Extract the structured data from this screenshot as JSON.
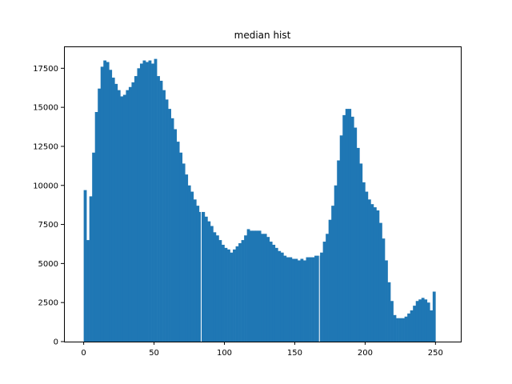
{
  "chart_data": {
    "type": "bar",
    "title": "median hist",
    "xlabel": "",
    "ylabel": "",
    "xlim": [
      -14,
      268
    ],
    "ylim": [
      0,
      18900
    ],
    "x_ticks": [
      0,
      50,
      100,
      150,
      200,
      250
    ],
    "x_tick_labels": [
      "0",
      "50",
      "100",
      "150",
      "200",
      "250"
    ],
    "y_ticks": [
      0,
      2500,
      5000,
      7500,
      10000,
      12500,
      15000,
      17500
    ],
    "y_tick_labels": [
      "0",
      "2500",
      "5000",
      "7500",
      "10000",
      "12500",
      "15000",
      "17500"
    ],
    "bar_color": "#1f77b4",
    "grid": false,
    "bins": [
      {
        "x": 0,
        "value": 9700
      },
      {
        "x": 2,
        "value": 6500
      },
      {
        "x": 4,
        "value": 9300
      },
      {
        "x": 6,
        "value": 12100
      },
      {
        "x": 8,
        "value": 14700
      },
      {
        "x": 10,
        "value": 16200
      },
      {
        "x": 12,
        "value": 17600
      },
      {
        "x": 14,
        "value": 18000
      },
      {
        "x": 16,
        "value": 17900
      },
      {
        "x": 18,
        "value": 17400
      },
      {
        "x": 20,
        "value": 16900
      },
      {
        "x": 22,
        "value": 16500
      },
      {
        "x": 24,
        "value": 16100
      },
      {
        "x": 26,
        "value": 15700
      },
      {
        "x": 28,
        "value": 15800
      },
      {
        "x": 30,
        "value": 16100
      },
      {
        "x": 32,
        "value": 16300
      },
      {
        "x": 34,
        "value": 16600
      },
      {
        "x": 36,
        "value": 17000
      },
      {
        "x": 38,
        "value": 17500
      },
      {
        "x": 40,
        "value": 17800
      },
      {
        "x": 42,
        "value": 18000
      },
      {
        "x": 44,
        "value": 17900
      },
      {
        "x": 46,
        "value": 18000
      },
      {
        "x": 48,
        "value": 17800
      },
      {
        "x": 50,
        "value": 18100
      },
      {
        "x": 52,
        "value": 17000
      },
      {
        "x": 54,
        "value": 16700
      },
      {
        "x": 56,
        "value": 16100
      },
      {
        "x": 58,
        "value": 15500
      },
      {
        "x": 60,
        "value": 14900
      },
      {
        "x": 62,
        "value": 14300
      },
      {
        "x": 64,
        "value": 13600
      },
      {
        "x": 66,
        "value": 12800
      },
      {
        "x": 68,
        "value": 12100
      },
      {
        "x": 70,
        "value": 11400
      },
      {
        "x": 72,
        "value": 10700
      },
      {
        "x": 74,
        "value": 10000
      },
      {
        "x": 76,
        "value": 9600
      },
      {
        "x": 78,
        "value": 9100
      },
      {
        "x": 80,
        "value": 8700
      },
      {
        "x": 82,
        "value": 8300
      },
      {
        "x": 84,
        "value": 8300
      },
      {
        "x": 86,
        "value": 8000
      },
      {
        "x": 88,
        "value": 7700
      },
      {
        "x": 90,
        "value": 7400
      },
      {
        "x": 92,
        "value": 7000
      },
      {
        "x": 94,
        "value": 6800
      },
      {
        "x": 96,
        "value": 6500
      },
      {
        "x": 98,
        "value": 6200
      },
      {
        "x": 100,
        "value": 6000
      },
      {
        "x": 102,
        "value": 5900
      },
      {
        "x": 104,
        "value": 5700
      },
      {
        "x": 106,
        "value": 5900
      },
      {
        "x": 108,
        "value": 6100
      },
      {
        "x": 110,
        "value": 6300
      },
      {
        "x": 112,
        "value": 6500
      },
      {
        "x": 114,
        "value": 6800
      },
      {
        "x": 116,
        "value": 7200
      },
      {
        "x": 118,
        "value": 7100
      },
      {
        "x": 120,
        "value": 7100
      },
      {
        "x": 122,
        "value": 7100
      },
      {
        "x": 124,
        "value": 7100
      },
      {
        "x": 126,
        "value": 6900
      },
      {
        "x": 128,
        "value": 6900
      },
      {
        "x": 130,
        "value": 6700
      },
      {
        "x": 132,
        "value": 6400
      },
      {
        "x": 134,
        "value": 6200
      },
      {
        "x": 136,
        "value": 6000
      },
      {
        "x": 138,
        "value": 5800
      },
      {
        "x": 140,
        "value": 5700
      },
      {
        "x": 142,
        "value": 5500
      },
      {
        "x": 144,
        "value": 5400
      },
      {
        "x": 146,
        "value": 5400
      },
      {
        "x": 148,
        "value": 5300
      },
      {
        "x": 150,
        "value": 5300
      },
      {
        "x": 152,
        "value": 5200
      },
      {
        "x": 154,
        "value": 5300
      },
      {
        "x": 156,
        "value": 5200
      },
      {
        "x": 158,
        "value": 5400
      },
      {
        "x": 160,
        "value": 5400
      },
      {
        "x": 162,
        "value": 5400
      },
      {
        "x": 164,
        "value": 5500
      },
      {
        "x": 166,
        "value": 5500
      },
      {
        "x": 168,
        "value": 5700
      },
      {
        "x": 170,
        "value": 6400
      },
      {
        "x": 172,
        "value": 6900
      },
      {
        "x": 174,
        "value": 7800
      },
      {
        "x": 176,
        "value": 8700
      },
      {
        "x": 178,
        "value": 10000
      },
      {
        "x": 180,
        "value": 11600
      },
      {
        "x": 182,
        "value": 13200
      },
      {
        "x": 184,
        "value": 14500
      },
      {
        "x": 186,
        "value": 14900
      },
      {
        "x": 188,
        "value": 14900
      },
      {
        "x": 190,
        "value": 14400
      },
      {
        "x": 192,
        "value": 13700
      },
      {
        "x": 194,
        "value": 12400
      },
      {
        "x": 196,
        "value": 11400
      },
      {
        "x": 198,
        "value": 10200
      },
      {
        "x": 200,
        "value": 9600
      },
      {
        "x": 202,
        "value": 9100
      },
      {
        "x": 204,
        "value": 8800
      },
      {
        "x": 206,
        "value": 8600
      },
      {
        "x": 208,
        "value": 8400
      },
      {
        "x": 210,
        "value": 7600
      },
      {
        "x": 212,
        "value": 6600
      },
      {
        "x": 214,
        "value": 5200
      },
      {
        "x": 216,
        "value": 3800
      },
      {
        "x": 218,
        "value": 2600
      },
      {
        "x": 220,
        "value": 1700
      },
      {
        "x": 222,
        "value": 1500
      },
      {
        "x": 224,
        "value": 1500
      },
      {
        "x": 226,
        "value": 1500
      },
      {
        "x": 228,
        "value": 1600
      },
      {
        "x": 230,
        "value": 1800
      },
      {
        "x": 232,
        "value": 2000
      },
      {
        "x": 234,
        "value": 2300
      },
      {
        "x": 236,
        "value": 2600
      },
      {
        "x": 238,
        "value": 2700
      },
      {
        "x": 240,
        "value": 2800
      },
      {
        "x": 242,
        "value": 2700
      },
      {
        "x": 244,
        "value": 2500
      },
      {
        "x": 246,
        "value": 2000
      },
      {
        "x": 248,
        "value": 3200
      }
    ],
    "bin_width": 2,
    "gaps_at": [
      83.5,
      167.5
    ]
  }
}
